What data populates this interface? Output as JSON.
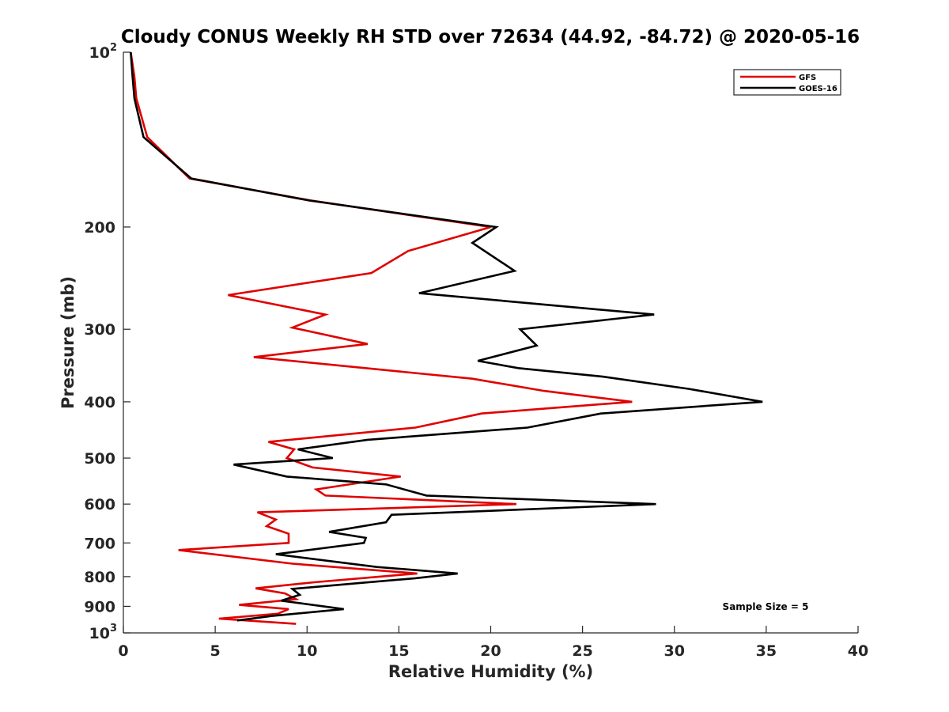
{
  "chart_data": {
    "type": "line",
    "title": "Cloudy CONUS Weekly RH STD over 72634 (44.92, -84.72) @ 2020-05-16",
    "xlabel": "Relative Humidity (%)",
    "ylabel": "Pressure (mb)",
    "xlim": [
      0,
      40
    ],
    "ylim": [
      100,
      1000
    ],
    "y_scale": "log",
    "y_reversed": true,
    "x_ticks": [
      "0",
      "5",
      "10",
      "15",
      "20",
      "25",
      "30",
      "35",
      "40"
    ],
    "y_ticks": [
      {
        "value": 100,
        "label": "10",
        "sup": "2"
      },
      {
        "value": 200,
        "label": "200",
        "sup": ""
      },
      {
        "value": 300,
        "label": "300",
        "sup": ""
      },
      {
        "value": 400,
        "label": "400",
        "sup": ""
      },
      {
        "value": 500,
        "label": "500",
        "sup": ""
      },
      {
        "value": 600,
        "label": "600",
        "sup": ""
      },
      {
        "value": 700,
        "label": "700",
        "sup": ""
      },
      {
        "value": 800,
        "label": "800",
        "sup": ""
      },
      {
        "value": 900,
        "label": "900",
        "sup": ""
      },
      {
        "value": 1000,
        "label": "10",
        "sup": "3"
      }
    ],
    "grid": false,
    "legend_position": "top-right",
    "annotation": "Sample Size = 5",
    "series": [
      {
        "name": "GFS",
        "color": "#e00000",
        "points": [
          [
            0.4,
            100
          ],
          [
            0.6,
            110
          ],
          [
            0.7,
            120
          ],
          [
            1.3,
            140
          ],
          [
            3.6,
            165
          ],
          [
            10.2,
            180
          ],
          [
            20.0,
            200
          ],
          [
            15.5,
            220
          ],
          [
            13.5,
            240
          ],
          [
            5.7,
            262
          ],
          [
            11.0,
            283
          ],
          [
            9.2,
            298
          ],
          [
            13.3,
            318
          ],
          [
            7.1,
            335
          ],
          [
            19.0,
            365
          ],
          [
            22.9,
            383
          ],
          [
            27.7,
            400
          ],
          [
            19.5,
            419
          ],
          [
            15.9,
            443
          ],
          [
            7.9,
            469
          ],
          [
            9.3,
            483
          ],
          [
            8.9,
            500
          ],
          [
            10.3,
            519
          ],
          [
            15.1,
            538
          ],
          [
            10.5,
            566
          ],
          [
            11.0,
            580
          ],
          [
            21.4,
            600
          ],
          [
            7.3,
            620
          ],
          [
            8.3,
            638
          ],
          [
            7.8,
            655
          ],
          [
            9.0,
            675
          ],
          [
            9.0,
            700
          ],
          [
            3.0,
            720
          ],
          [
            9.2,
            760
          ],
          [
            16.0,
            790
          ],
          [
            10.4,
            818
          ],
          [
            7.2,
            838
          ],
          [
            8.8,
            855
          ],
          [
            9.4,
            875
          ],
          [
            6.3,
            895
          ],
          [
            9.0,
            910
          ],
          [
            8.4,
            927
          ],
          [
            5.2,
            945
          ],
          [
            9.4,
            965
          ]
        ]
      },
      {
        "name": "GOES-16",
        "color": "#000000",
        "points": [
          [
            0.4,
            100
          ],
          [
            0.5,
            110
          ],
          [
            0.6,
            120
          ],
          [
            1.1,
            140
          ],
          [
            3.7,
            165
          ],
          [
            10.1,
            180
          ],
          [
            20.3,
            200
          ],
          [
            19.0,
            213
          ],
          [
            21.3,
            238
          ],
          [
            16.1,
            260
          ],
          [
            28.9,
            283
          ],
          [
            21.6,
            300
          ],
          [
            22.5,
            320
          ],
          [
            19.3,
            340
          ],
          [
            21.5,
            350
          ],
          [
            26.1,
            362
          ],
          [
            30.8,
            380
          ],
          [
            34.8,
            400
          ],
          [
            26.0,
            419
          ],
          [
            22.0,
            443
          ],
          [
            13.3,
            465
          ],
          [
            9.5,
            483
          ],
          [
            11.4,
            500
          ],
          [
            6.0,
            513
          ],
          [
            8.9,
            538
          ],
          [
            14.3,
            555
          ],
          [
            16.5,
            580
          ],
          [
            29.0,
            600
          ],
          [
            14.6,
            626
          ],
          [
            14.3,
            645
          ],
          [
            11.2,
            670
          ],
          [
            13.2,
            686
          ],
          [
            13.1,
            700
          ],
          [
            8.3,
            732
          ],
          [
            13.8,
            770
          ],
          [
            18.2,
            790
          ],
          [
            15.9,
            805
          ],
          [
            13.0,
            820
          ],
          [
            9.2,
            840
          ],
          [
            9.6,
            860
          ],
          [
            8.6,
            880
          ],
          [
            12.0,
            910
          ],
          [
            8.1,
            935
          ],
          [
            6.2,
            952
          ]
        ]
      }
    ]
  }
}
